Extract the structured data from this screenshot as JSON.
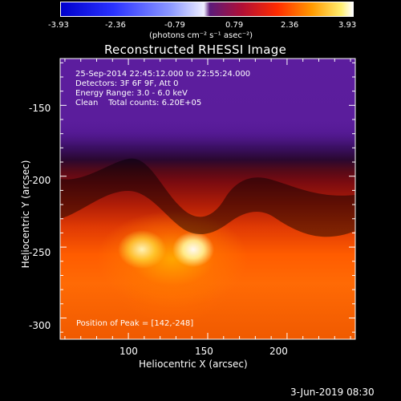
{
  "colorbar": {
    "ticks": [
      "-3.93",
      "-2.36",
      "-0.79",
      "0.79",
      "2.36",
      "3.93"
    ],
    "unit_label": "(photons cm⁻² s⁻¹ asec⁻²)"
  },
  "plot": {
    "title": "Reconstructed RHESSI Image",
    "info_lines": [
      "25-Sep-2014 22:45:12.000 to 22:55:24.000",
      "Detectors: 3F 6F 9F, Att 0",
      "Energy Range: 3.0 - 6.0 keV",
      "Clean    Total counts: 6.20E+05"
    ],
    "peak_text": "Position of Peak = [142,-248]",
    "x_label": "Heliocentric X (arcsec)",
    "y_label": "Heliocentric Y (arcsec)",
    "x_ticks": [
      "100",
      "150",
      "200"
    ],
    "y_ticks": [
      "-150",
      "-200",
      "-250",
      "-300"
    ]
  },
  "footer": {
    "date": "3-Jun-2019 08:30"
  },
  "chart_data": {
    "type": "heatmap",
    "title": "Reconstructed RHESSI Image",
    "xlabel": "Heliocentric X (arcsec)",
    "ylabel": "Heliocentric Y (arcsec)",
    "xlim": [
      57,
      243
    ],
    "ylim": [
      -315,
      -117
    ],
    "color_range": [
      -3.93,
      3.93
    ],
    "colorbar_unit": "photons cm-2 s-1 asec-2",
    "peak": [
      142,
      -248
    ],
    "grid": false
  }
}
